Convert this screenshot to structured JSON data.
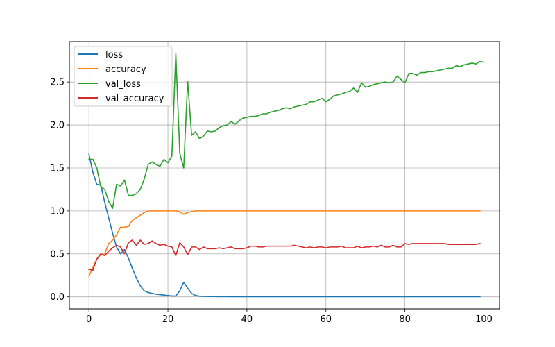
{
  "chart_data": {
    "type": "line",
    "title": "",
    "xlabel": "",
    "ylabel": "",
    "xlim": [
      -4.95,
      103.95
    ],
    "ylim": [
      -0.14,
      2.97
    ],
    "grid": true,
    "legend_position": "top-left",
    "xticks": [
      0,
      20,
      40,
      60,
      80,
      100
    ],
    "yticks": [
      0.0,
      0.5,
      1.0,
      1.5,
      2.0,
      2.5
    ],
    "xtick_labels": [
      "0",
      "20",
      "40",
      "60",
      "80",
      "100"
    ],
    "ytick_labels": [
      "0.0",
      "0.5",
      "1.0",
      "1.5",
      "2.0",
      "2.5"
    ],
    "series": [
      {
        "name": "loss",
        "color": "#1f77b4",
        "values": [
          1.66,
          1.45,
          1.31,
          1.3,
          1.1,
          0.92,
          0.74,
          0.58,
          0.5,
          0.55,
          0.45,
          0.33,
          0.22,
          0.13,
          0.07,
          0.05,
          0.04,
          0.03,
          0.025,
          0.02,
          0.015,
          0.01,
          0.01,
          0.07,
          0.17,
          0.1,
          0.04,
          0.015,
          0.008,
          0.006,
          0.005,
          0.004,
          0.004,
          0.003,
          0.003,
          0.003,
          0.002,
          0.002,
          0.002,
          0.002,
          0.002,
          0.002,
          0.002,
          0.002,
          0.002,
          0.002,
          0.002,
          0.002,
          0.002,
          0.002,
          0.002,
          0.002,
          0.002,
          0.002,
          0.002,
          0.002,
          0.002,
          0.002,
          0.002,
          0.002,
          0.002,
          0.002,
          0.002,
          0.002,
          0.002,
          0.002,
          0.002,
          0.002,
          0.002,
          0.002,
          0.002,
          0.002,
          0.002,
          0.002,
          0.002,
          0.002,
          0.002,
          0.002,
          0.002,
          0.002,
          0.002,
          0.002,
          0.002,
          0.002,
          0.002,
          0.002,
          0.002,
          0.002,
          0.002,
          0.002,
          0.002,
          0.002,
          0.002,
          0.002,
          0.002,
          0.002,
          0.002,
          0.002,
          0.002,
          0.002
        ]
      },
      {
        "name": "accuracy",
        "color": "#ff7f0e",
        "values": [
          0.24,
          0.34,
          0.44,
          0.49,
          0.5,
          0.62,
          0.66,
          0.72,
          0.81,
          0.81,
          0.82,
          0.89,
          0.92,
          0.95,
          0.98,
          1.0,
          1.0,
          1.0,
          1.0,
          1.0,
          1.0,
          1.0,
          1.0,
          0.99,
          0.96,
          0.98,
          0.99,
          1.0,
          1.0,
          1.0,
          1.0,
          1.0,
          1.0,
          1.0,
          1.0,
          1.0,
          1.0,
          1.0,
          1.0,
          1.0,
          1.0,
          1.0,
          1.0,
          1.0,
          1.0,
          1.0,
          1.0,
          1.0,
          1.0,
          1.0,
          1.0,
          1.0,
          1.0,
          1.0,
          1.0,
          1.0,
          1.0,
          1.0,
          1.0,
          1.0,
          1.0,
          1.0,
          1.0,
          1.0,
          1.0,
          1.0,
          1.0,
          1.0,
          1.0,
          1.0,
          1.0,
          1.0,
          1.0,
          1.0,
          1.0,
          1.0,
          1.0,
          1.0,
          1.0,
          1.0,
          1.0,
          1.0,
          1.0,
          1.0,
          1.0,
          1.0,
          1.0,
          1.0,
          1.0,
          1.0,
          1.0,
          1.0,
          1.0,
          1.0,
          1.0,
          1.0,
          1.0,
          1.0,
          1.0,
          1.0
        ]
      },
      {
        "name": "val_loss",
        "color": "#2ca02c",
        "values": [
          1.6,
          1.6,
          1.5,
          1.28,
          1.25,
          1.11,
          1.03,
          1.31,
          1.29,
          1.36,
          1.18,
          1.18,
          1.2,
          1.25,
          1.37,
          1.54,
          1.57,
          1.54,
          1.52,
          1.6,
          1.56,
          1.64,
          2.83,
          1.67,
          1.5,
          2.51,
          1.88,
          1.92,
          1.84,
          1.87,
          1.93,
          1.92,
          1.93,
          1.97,
          1.99,
          2.0,
          2.04,
          2.01,
          2.05,
          2.08,
          2.09,
          2.1,
          2.1,
          2.11,
          2.13,
          2.13,
          2.15,
          2.16,
          2.17,
          2.19,
          2.2,
          2.19,
          2.21,
          2.22,
          2.23,
          2.24,
          2.27,
          2.27,
          2.29,
          2.31,
          2.27,
          2.3,
          2.34,
          2.35,
          2.36,
          2.38,
          2.39,
          2.43,
          2.38,
          2.49,
          2.44,
          2.45,
          2.47,
          2.48,
          2.49,
          2.5,
          2.49,
          2.5,
          2.57,
          2.53,
          2.49,
          2.6,
          2.6,
          2.58,
          2.61,
          2.61,
          2.62,
          2.62,
          2.63,
          2.64,
          2.65,
          2.66,
          2.66,
          2.69,
          2.68,
          2.7,
          2.71,
          2.72,
          2.71,
          2.74,
          2.73
        ]
      },
      {
        "name": "val_accuracy",
        "color": "#d62728",
        "values": [
          0.32,
          0.31,
          0.44,
          0.5,
          0.48,
          0.53,
          0.57,
          0.6,
          0.58,
          0.5,
          0.63,
          0.66,
          0.6,
          0.66,
          0.61,
          0.62,
          0.65,
          0.62,
          0.6,
          0.61,
          0.59,
          0.58,
          0.48,
          0.63,
          0.58,
          0.49,
          0.58,
          0.58,
          0.55,
          0.58,
          0.56,
          0.56,
          0.56,
          0.57,
          0.56,
          0.57,
          0.58,
          0.56,
          0.56,
          0.56,
          0.57,
          0.59,
          0.59,
          0.58,
          0.58,
          0.59,
          0.59,
          0.59,
          0.59,
          0.59,
          0.59,
          0.59,
          0.6,
          0.59,
          0.58,
          0.57,
          0.58,
          0.57,
          0.58,
          0.58,
          0.57,
          0.58,
          0.58,
          0.58,
          0.59,
          0.57,
          0.57,
          0.57,
          0.59,
          0.57,
          0.58,
          0.58,
          0.59,
          0.58,
          0.6,
          0.58,
          0.58,
          0.6,
          0.58,
          0.58,
          0.62,
          0.61,
          0.62,
          0.62,
          0.62,
          0.62,
          0.62,
          0.62,
          0.62,
          0.62,
          0.62,
          0.61,
          0.61,
          0.61,
          0.61,
          0.61,
          0.61,
          0.61,
          0.61,
          0.62
        ]
      }
    ]
  }
}
